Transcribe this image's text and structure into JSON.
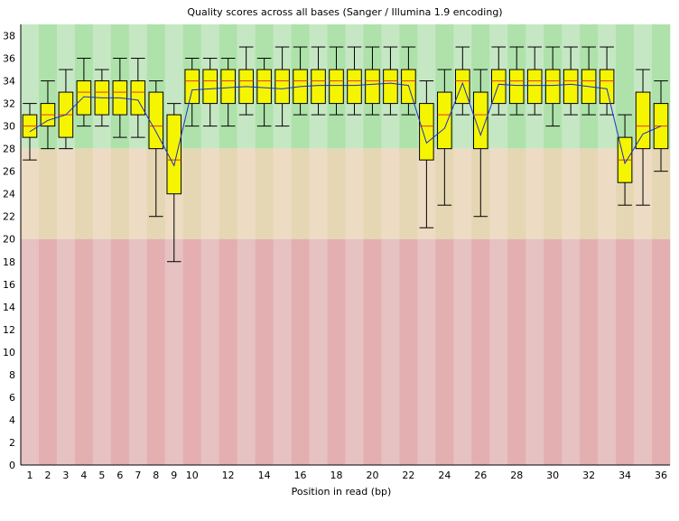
{
  "chart_data": {
    "type": "box",
    "title": "Quality scores across all bases (Sanger / Illumina 1.9 encoding)",
    "xlabel": "Position in read (bp)",
    "ylabel": "",
    "ylim": [
      0,
      39
    ],
    "y_ticks": [
      0,
      2,
      4,
      6,
      8,
      10,
      12,
      14,
      16,
      18,
      20,
      22,
      24,
      26,
      28,
      30,
      32,
      34,
      36,
      38
    ],
    "x_tick_labels": [
      "1",
      "2",
      "3",
      "4",
      "5",
      "6",
      "7",
      "8",
      "9",
      "10",
      "12",
      "14",
      "16",
      "18",
      "20",
      "22",
      "24",
      "26",
      "28",
      "30",
      "32",
      "34",
      "36"
    ],
    "x_tick_positions": [
      1,
      2,
      3,
      4,
      5,
      6,
      7,
      8,
      9,
      10,
      12,
      14,
      16,
      18,
      20,
      22,
      24,
      26,
      28,
      30,
      32,
      34,
      36
    ],
    "quality_zones": [
      {
        "name": "good",
        "from": 28,
        "to": 39,
        "colors": [
          "#c6e7c4",
          "#aee2aa"
        ]
      },
      {
        "name": "reasonable",
        "from": 20,
        "to": 28,
        "colors": [
          "#eddcc3",
          "#e5d7b3"
        ]
      },
      {
        "name": "poor",
        "from": 0,
        "to": 20,
        "colors": [
          "#e6c2c2",
          "#e3afb0"
        ]
      }
    ],
    "colors": {
      "box": "#f5f500",
      "median": "#e8352b",
      "mean_line": "#1e2fd0",
      "whisker": "#000000"
    },
    "positions": [
      {
        "position": 1,
        "whisker_low": 27,
        "q1": 29,
        "median": 30,
        "q3": 31,
        "whisker_high": 32,
        "mean": 29.5
      },
      {
        "position": 2,
        "whisker_low": 28,
        "q1": 30,
        "median": 31,
        "q3": 32,
        "whisker_high": 34,
        "mean": 30.5
      },
      {
        "position": 3,
        "whisker_low": 28,
        "q1": 29,
        "median": 31,
        "q3": 33,
        "whisker_high": 35,
        "mean": 31.0
      },
      {
        "position": 4,
        "whisker_low": 30,
        "q1": 31,
        "median": 33,
        "q3": 34,
        "whisker_high": 36,
        "mean": 32.6
      },
      {
        "position": 5,
        "whisker_low": 30,
        "q1": 31,
        "median": 33,
        "q3": 34,
        "whisker_high": 35,
        "mean": 32.5
      },
      {
        "position": 6,
        "whisker_low": 29,
        "q1": 31,
        "median": 33,
        "q3": 34,
        "whisker_high": 36,
        "mean": 32.5
      },
      {
        "position": 7,
        "whisker_low": 29,
        "q1": 31,
        "median": 33,
        "q3": 34,
        "whisker_high": 36,
        "mean": 32.3
      },
      {
        "position": 8,
        "whisker_low": 22,
        "q1": 28,
        "median": 30,
        "q3": 33,
        "whisker_high": 34,
        "mean": 29.5
      },
      {
        "position": 9,
        "whisker_low": 18,
        "q1": 24,
        "median": 27,
        "q3": 31,
        "whisker_high": 32,
        "mean": 26.5
      },
      {
        "position": 10,
        "whisker_low": 30,
        "q1": 32,
        "median": 34,
        "q3": 35,
        "whisker_high": 36,
        "mean": 33.2
      },
      {
        "position": 11,
        "whisker_low": 30,
        "q1": 32,
        "median": 34,
        "q3": 35,
        "whisker_high": 36,
        "mean": 33.3
      },
      {
        "position": 12,
        "whisker_low": 30,
        "q1": 32,
        "median": 34,
        "q3": 35,
        "whisker_high": 36,
        "mean": 33.4
      },
      {
        "position": 13,
        "whisker_low": 31,
        "q1": 32,
        "median": 34,
        "q3": 35,
        "whisker_high": 37,
        "mean": 33.5
      },
      {
        "position": 14,
        "whisker_low": 30,
        "q1": 32,
        "median": 34,
        "q3": 35,
        "whisker_high": 36,
        "mean": 33.4
      },
      {
        "position": 15,
        "whisker_low": 30,
        "q1": 32,
        "median": 34,
        "q3": 35,
        "whisker_high": 37,
        "mean": 33.3
      },
      {
        "position": 16,
        "whisker_low": 31,
        "q1": 32,
        "median": 34,
        "q3": 35,
        "whisker_high": 37,
        "mean": 33.5
      },
      {
        "position": 17,
        "whisker_low": 31,
        "q1": 32,
        "median": 34,
        "q3": 35,
        "whisker_high": 37,
        "mean": 33.6
      },
      {
        "position": 18,
        "whisker_low": 31,
        "q1": 32,
        "median": 34,
        "q3": 35,
        "whisker_high": 37,
        "mean": 33.6
      },
      {
        "position": 19,
        "whisker_low": 31,
        "q1": 32,
        "median": 34,
        "q3": 35,
        "whisker_high": 37,
        "mean": 33.6
      },
      {
        "position": 20,
        "whisker_low": 31,
        "q1": 32,
        "median": 34,
        "q3": 35,
        "whisker_high": 37,
        "mean": 33.7
      },
      {
        "position": 21,
        "whisker_low": 31,
        "q1": 32,
        "median": 34,
        "q3": 35,
        "whisker_high": 37,
        "mean": 33.8
      },
      {
        "position": 22,
        "whisker_low": 31,
        "q1": 32,
        "median": 34,
        "q3": 35,
        "whisker_high": 37,
        "mean": 33.6
      },
      {
        "position": 23,
        "whisker_low": 21,
        "q1": 27,
        "median": 30,
        "q3": 32,
        "whisker_high": 34,
        "mean": 28.5
      },
      {
        "position": 24,
        "whisker_low": 23,
        "q1": 28,
        "median": 31,
        "q3": 33,
        "whisker_high": 35,
        "mean": 29.8
      },
      {
        "position": 25,
        "whisker_low": 31,
        "q1": 32,
        "median": 34,
        "q3": 35,
        "whisker_high": 37,
        "mean": 33.8
      },
      {
        "position": 26,
        "whisker_low": 22,
        "q1": 28,
        "median": 31,
        "q3": 33,
        "whisker_high": 35,
        "mean": 29.2
      },
      {
        "position": 27,
        "whisker_low": 31,
        "q1": 32,
        "median": 34,
        "q3": 35,
        "whisker_high": 37,
        "mean": 33.7
      },
      {
        "position": 28,
        "whisker_low": 31,
        "q1": 32,
        "median": 34,
        "q3": 35,
        "whisker_high": 37,
        "mean": 33.6
      },
      {
        "position": 29,
        "whisker_low": 31,
        "q1": 32,
        "median": 34,
        "q3": 35,
        "whisker_high": 37,
        "mean": 33.6
      },
      {
        "position": 30,
        "whisker_low": 30,
        "q1": 32,
        "median": 34,
        "q3": 35,
        "whisker_high": 37,
        "mean": 33.6
      },
      {
        "position": 31,
        "whisker_low": 31,
        "q1": 32,
        "median": 34,
        "q3": 35,
        "whisker_high": 37,
        "mean": 33.7
      },
      {
        "position": 32,
        "whisker_low": 31,
        "q1": 32,
        "median": 34,
        "q3": 35,
        "whisker_high": 37,
        "mean": 33.5
      },
      {
        "position": 33,
        "whisker_low": 31,
        "q1": 32,
        "median": 34,
        "q3": 35,
        "whisker_high": 37,
        "mean": 33.3
      },
      {
        "position": 34,
        "whisker_low": 23,
        "q1": 25,
        "median": 27,
        "q3": 29,
        "whisker_high": 31,
        "mean": 26.7
      },
      {
        "position": 35,
        "whisker_low": 23,
        "q1": 28,
        "median": 30,
        "q3": 33,
        "whisker_high": 35,
        "mean": 29.3
      },
      {
        "position": 36,
        "whisker_low": 26,
        "q1": 28,
        "median": 30,
        "q3": 32,
        "whisker_high": 34,
        "mean": 30.0
      }
    ]
  }
}
